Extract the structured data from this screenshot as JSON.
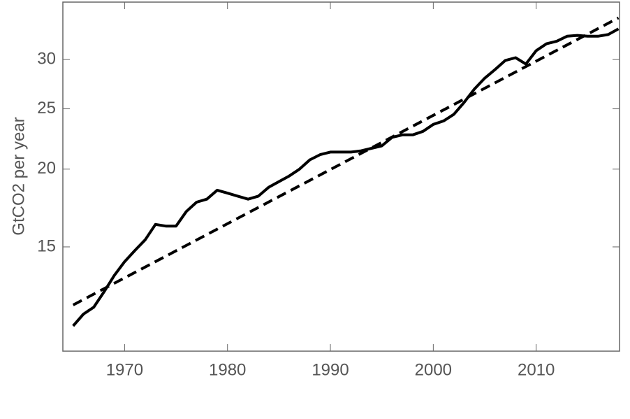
{
  "chart_data": {
    "type": "line",
    "y_label": "GtCO2 per year",
    "log_y": true,
    "x": [
      1965,
      1966,
      1967,
      1968,
      1969,
      1970,
      1971,
      1972,
      1973,
      1974,
      1975,
      1976,
      1977,
      1978,
      1979,
      1980,
      1981,
      1982,
      1983,
      1984,
      1985,
      1986,
      1987,
      1988,
      1989,
      1990,
      1991,
      1992,
      1993,
      1994,
      1995,
      1996,
      1997,
      1998,
      1999,
      2000,
      2001,
      2002,
      2003,
      2004,
      2005,
      2006,
      2007,
      2008,
      2009,
      2010,
      2011,
      2012,
      2013,
      2014,
      2015,
      2016,
      2017,
      2018
    ],
    "series": [
      {
        "color": "#000000",
        "dashed": false,
        "values": [
          11.2,
          11.7,
          12.0,
          12.7,
          13.5,
          14.2,
          14.8,
          15.4,
          16.3,
          16.2,
          16.2,
          17.1,
          17.7,
          17.9,
          18.5,
          18.3,
          18.1,
          17.9,
          18.1,
          18.7,
          19.1,
          19.5,
          20.0,
          20.7,
          21.1,
          21.3,
          21.3,
          21.3,
          21.4,
          21.6,
          21.8,
          22.5,
          22.7,
          22.7,
          23.0,
          23.6,
          23.9,
          24.5,
          25.6,
          26.9,
          28.0,
          28.9,
          29.9,
          30.2,
          29.5,
          31.0,
          31.8,
          32.1,
          32.7,
          32.8,
          32.7,
          32.7,
          32.9,
          33.6
        ]
      },
      {
        "color": "#000000",
        "dashed": true,
        "x": [
          1965,
          2018
        ],
        "values": [
          12.1,
          35.0
        ]
      }
    ],
    "xlim": [
      1964,
      2018.1
    ],
    "xticks": [
      1970,
      1980,
      1990,
      2000,
      2010
    ],
    "ylim": [
      10.2,
      37.1
    ],
    "yticks": [
      15,
      20,
      25,
      30
    ]
  }
}
